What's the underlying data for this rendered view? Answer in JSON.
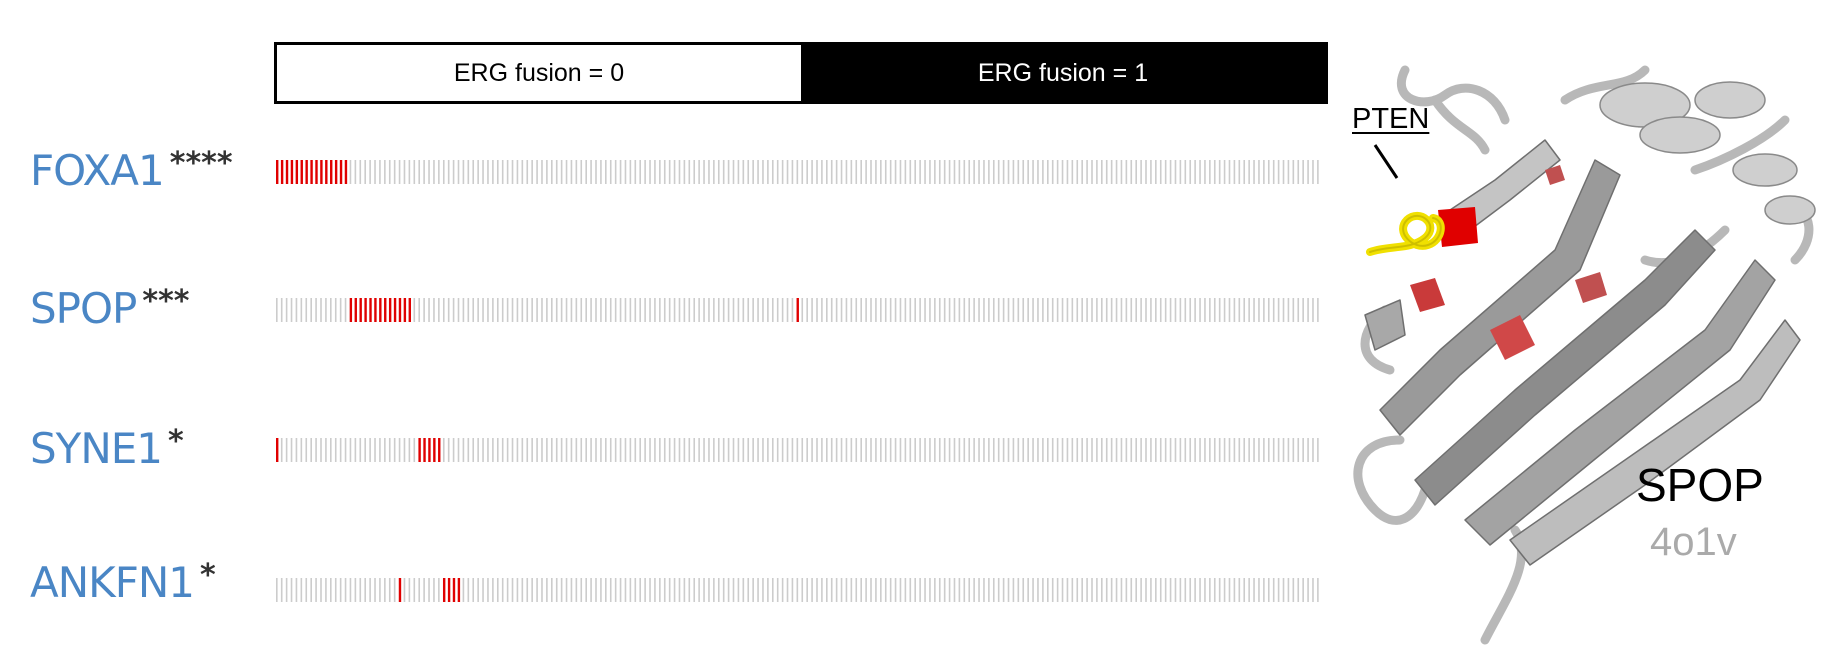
{
  "header": {
    "left_label": "ERG fusion = 0",
    "right_label": "ERG fusion = 1"
  },
  "colors": {
    "gene_label": "#4a86c5",
    "mutated": "#e00000",
    "wild_type": "#cccccc",
    "pten_peptide": "#f0e000"
  },
  "tracks": {
    "sample_count": 213,
    "erg0_count": 106
  },
  "genes": [
    {
      "name": "FOXA1",
      "stars": "****",
      "mutated_ranges": [
        [
          0,
          14
        ]
      ]
    },
    {
      "name": "SPOP",
      "stars": "***",
      "mutated_ranges": [
        [
          15,
          27
        ],
        [
          106,
          106
        ]
      ]
    },
    {
      "name": "SYNE1",
      "stars": "*",
      "mutated_ranges": [
        [
          0,
          0
        ],
        [
          29,
          33
        ]
      ]
    },
    {
      "name": "ANKFN1",
      "stars": "*",
      "mutated_ranges": [
        [
          25,
          25
        ],
        [
          34,
          37
        ]
      ]
    }
  ],
  "structure": {
    "peptide_label": "PTEN",
    "protein_name": "SPOP",
    "pdb_id": "4o1v"
  }
}
